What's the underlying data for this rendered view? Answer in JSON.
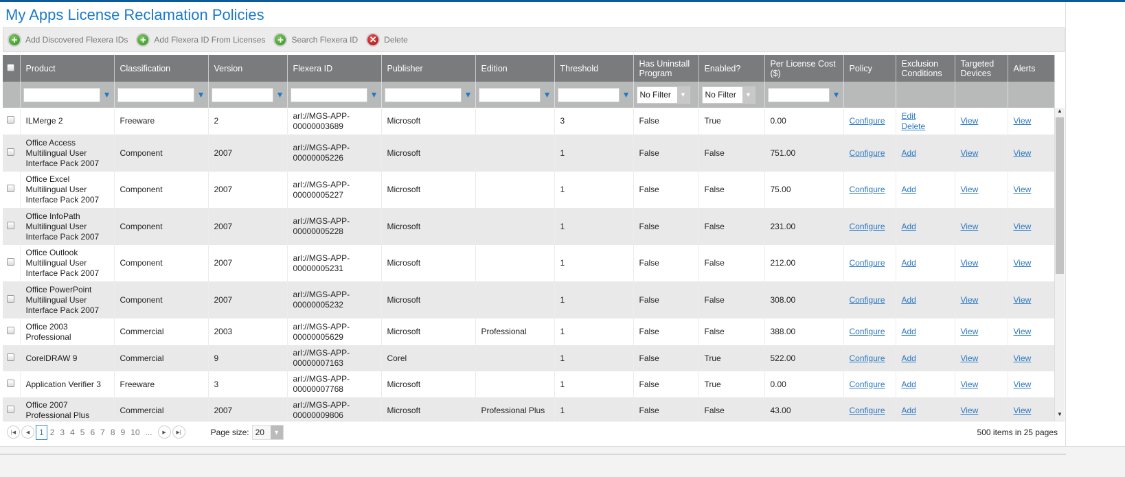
{
  "title": "My Apps License Reclamation Policies",
  "toolbar": {
    "add_discovered": "Add Discovered Flexera IDs",
    "add_from_licenses": "Add Flexera ID From Licenses",
    "search": "Search Flexera ID",
    "delete": "Delete"
  },
  "columns": [
    "Product",
    "Classification",
    "Version",
    "Flexera ID",
    "Publisher",
    "Edition",
    "Threshold",
    "Has Uninstall Program",
    "Enabled?",
    "Per License Cost ($)",
    "Policy",
    "Exclusion Conditions",
    "Targeted Devices",
    "Alerts"
  ],
  "filters": {
    "has_uninstall": "No Filter",
    "enabled": "No Filter"
  },
  "rows": [
    {
      "product": "ILMerge 2",
      "classification": "Freeware",
      "version": "2",
      "flexera_id": "arl://MGS-APP-00000003689",
      "publisher": "Microsoft",
      "edition": "",
      "threshold": "3",
      "uninstall": "False",
      "enabled": "True",
      "cost": "0.00",
      "policy": "Configure",
      "excl1": "Edit",
      "excl2": "Delete",
      "devices": "View",
      "alerts": "View"
    },
    {
      "product": "Office Access Multilingual User Interface Pack 2007",
      "classification": "Component",
      "version": "2007",
      "flexera_id": "arl://MGS-APP-00000005226",
      "publisher": "Microsoft",
      "edition": "",
      "threshold": "1",
      "uninstall": "False",
      "enabled": "False",
      "cost": "751.00",
      "policy": "Configure",
      "excl1": "Add",
      "excl2": "",
      "devices": "View",
      "alerts": "View"
    },
    {
      "product": "Office Excel Multilingual User Interface Pack 2007",
      "classification": "Component",
      "version": "2007",
      "flexera_id": "arl://MGS-APP-00000005227",
      "publisher": "Microsoft",
      "edition": "",
      "threshold": "1",
      "uninstall": "False",
      "enabled": "False",
      "cost": "75.00",
      "policy": "Configure",
      "excl1": "Add",
      "excl2": "",
      "devices": "View",
      "alerts": "View"
    },
    {
      "product": "Office InfoPath Multilingual User Interface Pack 2007",
      "classification": "Component",
      "version": "2007",
      "flexera_id": "arl://MGS-APP-00000005228",
      "publisher": "Microsoft",
      "edition": "",
      "threshold": "1",
      "uninstall": "False",
      "enabled": "False",
      "cost": "231.00",
      "policy": "Configure",
      "excl1": "Add",
      "excl2": "",
      "devices": "View",
      "alerts": "View"
    },
    {
      "product": "Office Outlook Multilingual User Interface Pack 2007",
      "classification": "Component",
      "version": "2007",
      "flexera_id": "arl://MGS-APP-00000005231",
      "publisher": "Microsoft",
      "edition": "",
      "threshold": "1",
      "uninstall": "False",
      "enabled": "False",
      "cost": "212.00",
      "policy": "Configure",
      "excl1": "Add",
      "excl2": "",
      "devices": "View",
      "alerts": "View"
    },
    {
      "product": "Office PowerPoint Multilingual User Interface Pack 2007",
      "classification": "Component",
      "version": "2007",
      "flexera_id": "arl://MGS-APP-00000005232",
      "publisher": "Microsoft",
      "edition": "",
      "threshold": "1",
      "uninstall": "False",
      "enabled": "False",
      "cost": "308.00",
      "policy": "Configure",
      "excl1": "Add",
      "excl2": "",
      "devices": "View",
      "alerts": "View"
    },
    {
      "product": "Office 2003 Professional",
      "classification": "Commercial",
      "version": "2003",
      "flexera_id": "arl://MGS-APP-00000005629",
      "publisher": "Microsoft",
      "edition": "Professional",
      "threshold": "1",
      "uninstall": "False",
      "enabled": "False",
      "cost": "388.00",
      "policy": "Configure",
      "excl1": "Add",
      "excl2": "",
      "devices": "View",
      "alerts": "View"
    },
    {
      "product": "CorelDRAW 9",
      "classification": "Commercial",
      "version": "9",
      "flexera_id": "arl://MGS-APP-00000007163",
      "publisher": "Corel",
      "edition": "",
      "threshold": "1",
      "uninstall": "False",
      "enabled": "True",
      "cost": "522.00",
      "policy": "Configure",
      "excl1": "Add",
      "excl2": "",
      "devices": "View",
      "alerts": "View"
    },
    {
      "product": "Application Verifier 3",
      "classification": "Freeware",
      "version": "3",
      "flexera_id": "arl://MGS-APP-00000007768",
      "publisher": "Microsoft",
      "edition": "",
      "threshold": "1",
      "uninstall": "False",
      "enabled": "True",
      "cost": "0.00",
      "policy": "Configure",
      "excl1": "Add",
      "excl2": "",
      "devices": "View",
      "alerts": "View"
    },
    {
      "product": "Office 2007 Professional Plus",
      "classification": "Commercial",
      "version": "2007",
      "flexera_id": "arl://MGS-APP-00000009806",
      "publisher": "Microsoft",
      "edition": "Professional Plus",
      "threshold": "1",
      "uninstall": "False",
      "enabled": "False",
      "cost": "43.00",
      "policy": "Configure",
      "excl1": "Add",
      "excl2": "",
      "devices": "View",
      "alerts": "View"
    }
  ],
  "pager": {
    "pages": [
      "1",
      "2",
      "3",
      "4",
      "5",
      "6",
      "7",
      "8",
      "9",
      "10",
      "..."
    ],
    "current": "1",
    "page_size_label": "Page size:",
    "page_size": "20",
    "items": "500",
    "items_text": "items in",
    "page_count": "25",
    "pages_text": "pages"
  }
}
